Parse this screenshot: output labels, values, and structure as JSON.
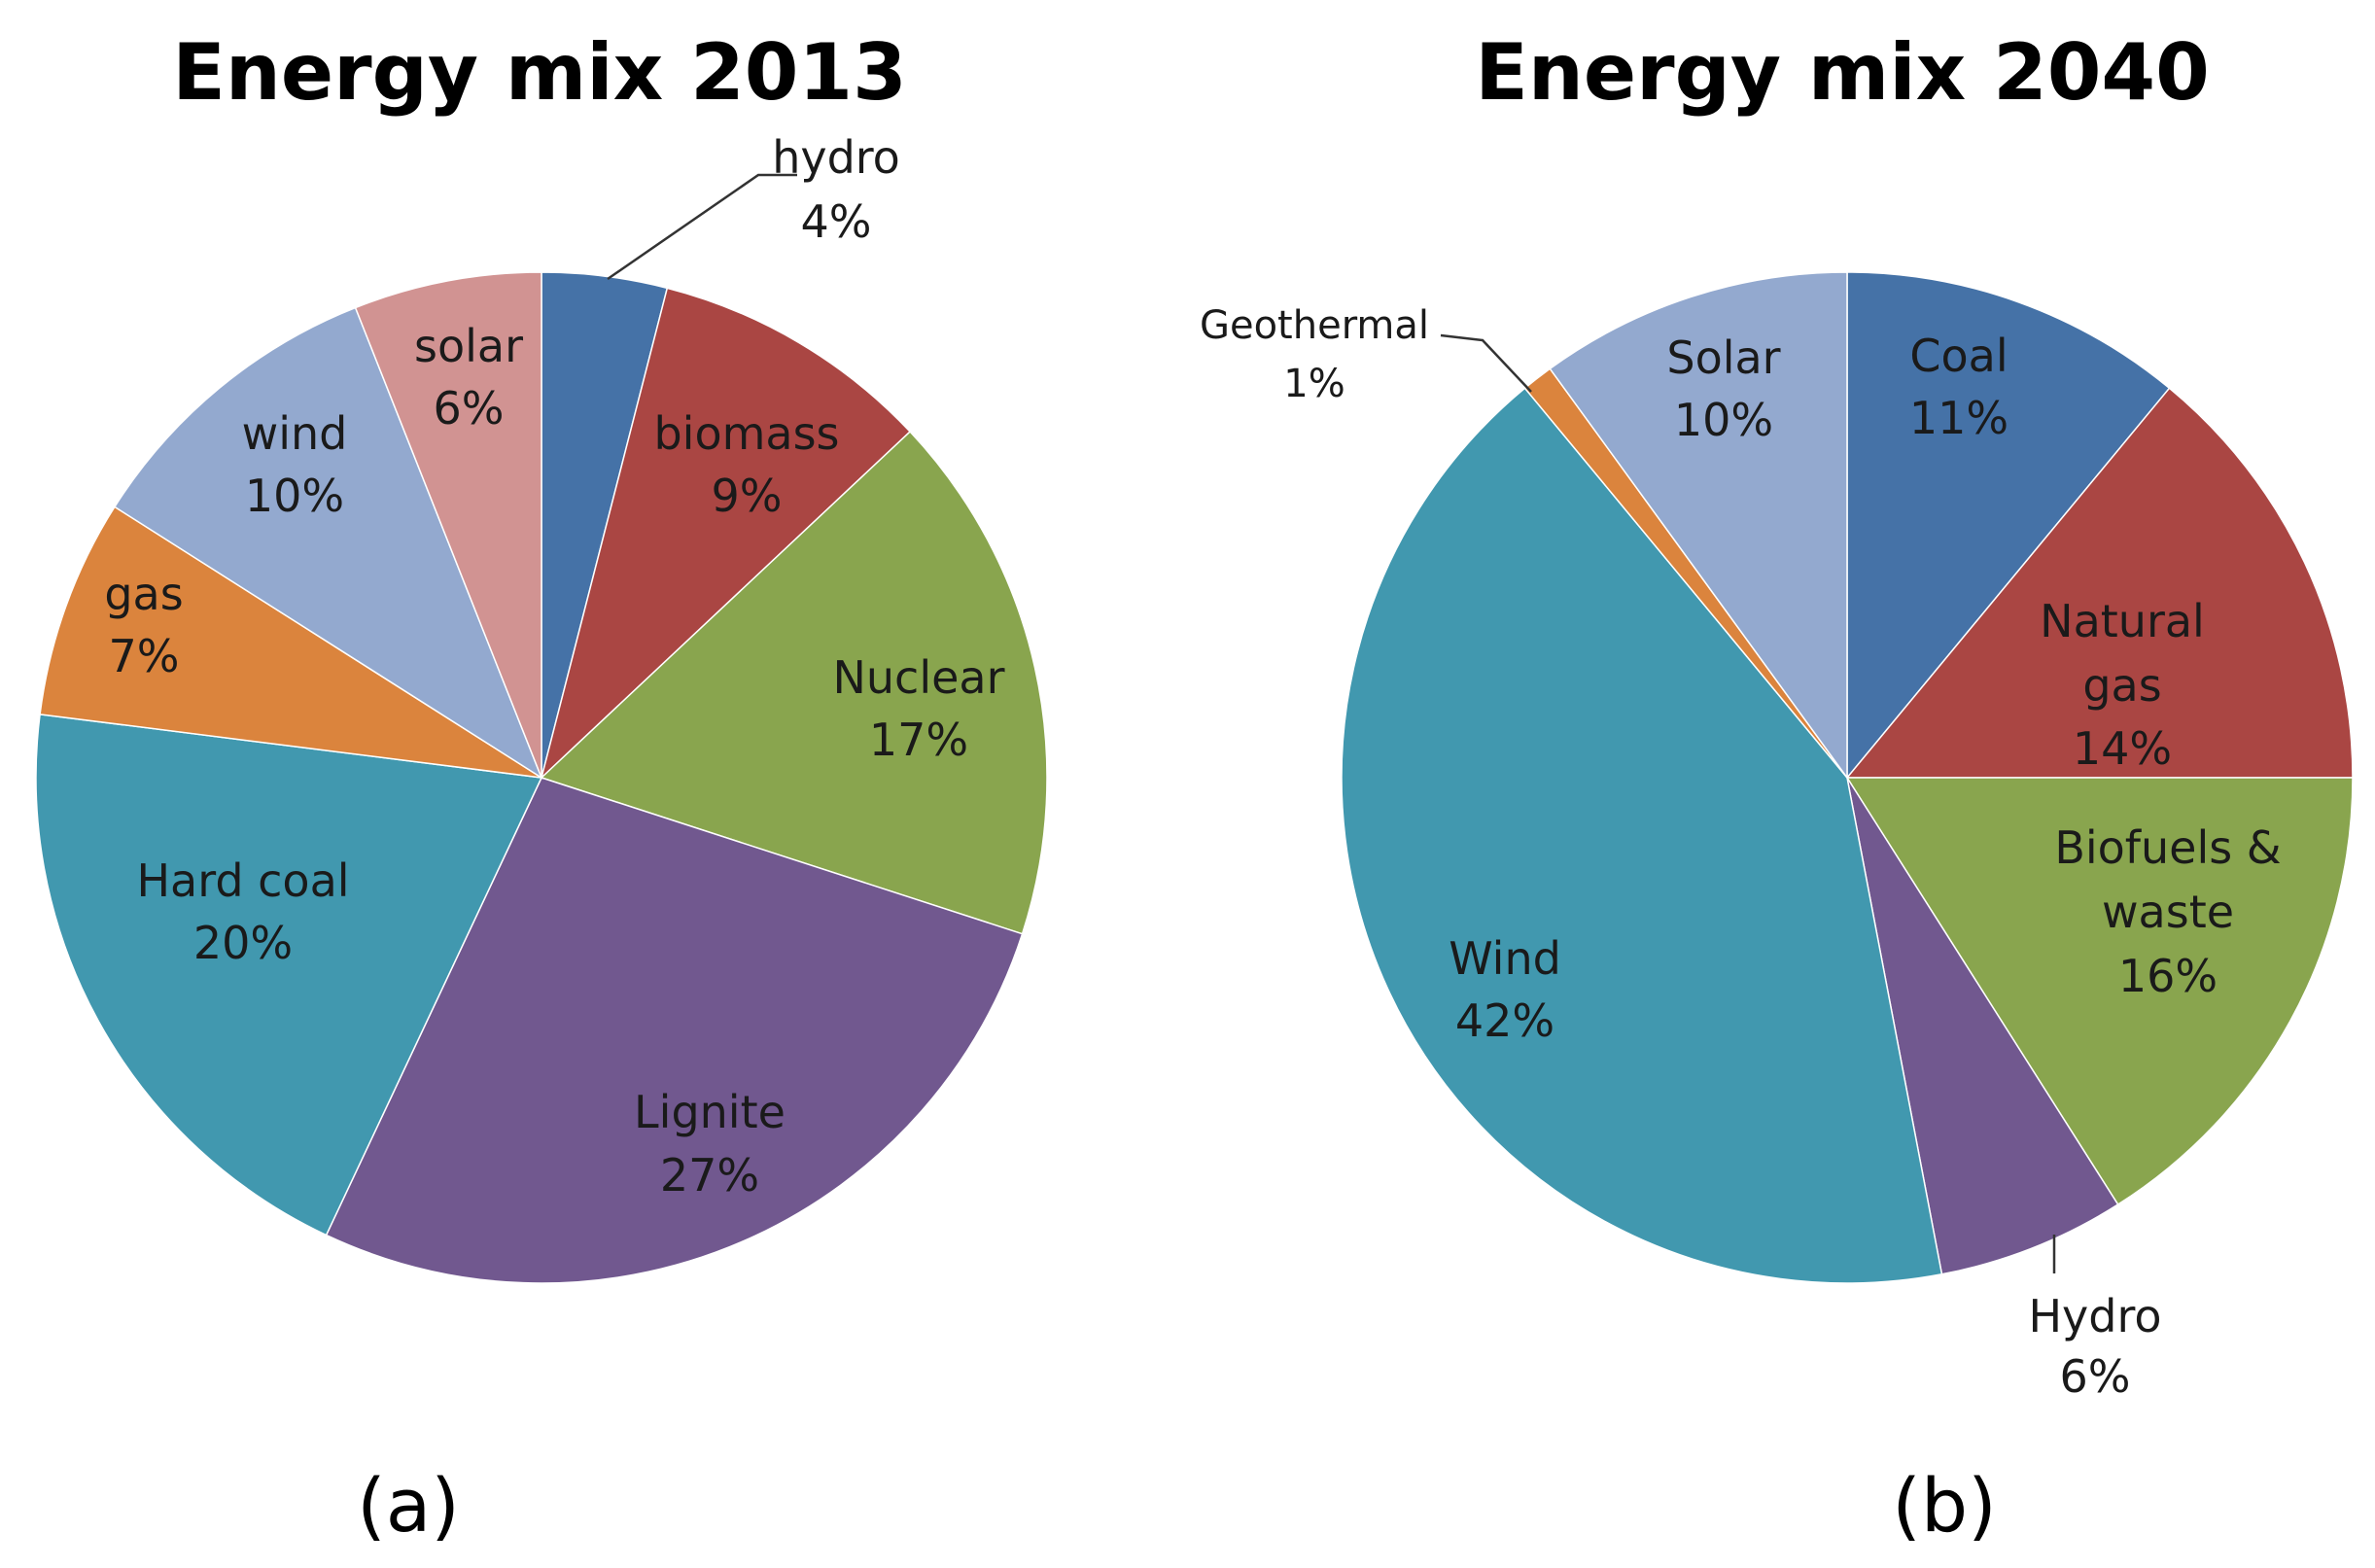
{
  "chart_data": [
    {
      "type": "pie",
      "title": "Energy mix 2013",
      "panel_label": "(a)",
      "start_angle_deg": 0,
      "direction": "clockwise",
      "slices": [
        {
          "label": "hydro",
          "value": 4,
          "value_text": "4%",
          "color": "#4572A7"
        },
        {
          "label": "biomass",
          "value": 9,
          "value_text": "9%",
          "color": "#AA4643"
        },
        {
          "label": "Nuclear",
          "value": 17,
          "value_text": "17%",
          "color": "#89A54E"
        },
        {
          "label": "Lignite",
          "value": 27,
          "value_text": "27%",
          "color": "#71588F"
        },
        {
          "label": "Hard coal",
          "value": 20,
          "value_text": "20%",
          "color": "#4198AF"
        },
        {
          "label": "gas",
          "value": 7,
          "value_text": "7%",
          "color": "#DB843D"
        },
        {
          "label": "wind",
          "value": 10,
          "value_text": "10%",
          "color": "#93A9CF"
        },
        {
          "label": "solar",
          "value": 6,
          "value_text": "6%",
          "color": "#D19392"
        }
      ]
    },
    {
      "type": "pie",
      "title": "Energy mix 2040",
      "panel_label": "(b)",
      "start_angle_deg": 0,
      "direction": "clockwise",
      "slices": [
        {
          "label": "Coal",
          "value": 11,
          "value_text": "11%",
          "color": "#4572A7"
        },
        {
          "label": "Natural gas",
          "value": 14,
          "value_text": "14%",
          "color": "#AA4643"
        },
        {
          "label": "Biofuels & waste",
          "value": 16,
          "value_text": "16%",
          "color": "#89A54E"
        },
        {
          "label": "Hydro",
          "value": 6,
          "value_text": "6%",
          "color": "#71588F"
        },
        {
          "label": "Wind",
          "value": 42,
          "value_text": "42%",
          "color": "#4198AF"
        },
        {
          "label": "Geothermal",
          "value": 1,
          "value_text": "1%",
          "color": "#DB843D"
        },
        {
          "label": "Solar",
          "value": 10,
          "value_text": "10%",
          "color": "#93A9CF"
        }
      ]
    }
  ]
}
